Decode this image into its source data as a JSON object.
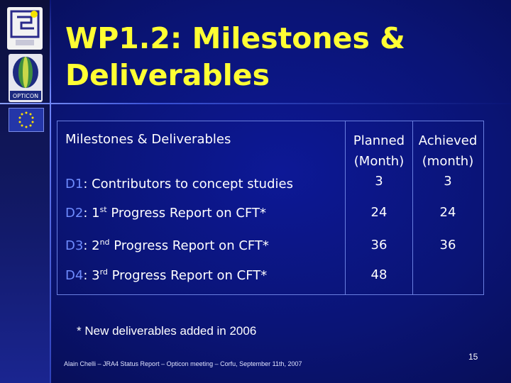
{
  "slide": {
    "title_line1": "WP1.2: Milestones &",
    "title_line2": "Deliverables",
    "page_number": "15",
    "footer": "Alain Chelli – JRA4 Status Report – Opticon meeting – Corfu, September 11th, 2007",
    "note": "* New deliverables added in 2006"
  },
  "table": {
    "headers": {
      "description": "Milestones & Deliverables",
      "planned_line1": "Planned",
      "planned_line2": "(Month)",
      "achieved_line1": "Achieved",
      "achieved_line2": "(month)"
    },
    "rows": [
      {
        "code": "D1",
        "text": ": Contributors to concept studies",
        "ordinal": "",
        "ordinal_sup": "",
        "rest": "",
        "planned": "3",
        "achieved": "3"
      },
      {
        "code": "D2",
        "text": ": ",
        "ordinal": "1",
        "ordinal_sup": "st",
        "rest": " Progress Report on CFT*",
        "planned": "24",
        "achieved": "24"
      },
      {
        "code": "D3",
        "text": ": ",
        "ordinal": "2",
        "ordinal_sup": "nd",
        "rest": " Progress Report on CFT*",
        "planned": "36",
        "achieved": "36"
      },
      {
        "code": "D4",
        "text": ": ",
        "ordinal": "3",
        "ordinal_sup": "rd",
        "rest": " Progress Report on CFT*",
        "planned": "48",
        "achieved": ""
      }
    ]
  },
  "colors": {
    "title": "#ffff33",
    "code": "#6f8cff",
    "background": "#0a1475"
  },
  "logos": [
    "logo-icon",
    "opticon-logo-icon",
    "eu-flag-icon"
  ]
}
